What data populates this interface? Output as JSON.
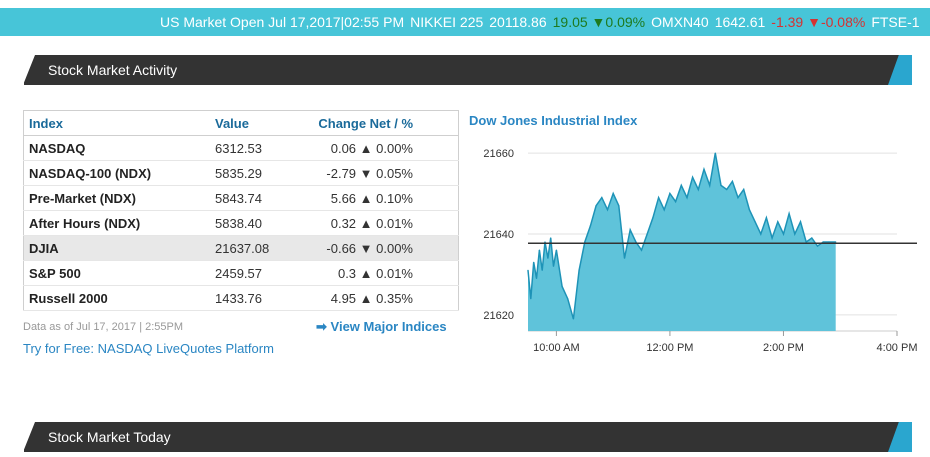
{
  "ticker": {
    "items": [
      {
        "text": "US Market Open  Jul 17,2017|02:55 PM",
        "cls": ""
      },
      {
        "text": "NIKKEI 225",
        "cls": ""
      },
      {
        "text": "20118.86",
        "cls": ""
      },
      {
        "text": "19.05 ▼0.09%",
        "cls": "up"
      },
      {
        "text": "OMXN40",
        "cls": ""
      },
      {
        "text": "1642.61",
        "cls": ""
      },
      {
        "text": "-1.39 ▼-0.08%",
        "cls": "down"
      },
      {
        "text": "FTSE-1",
        "cls": ""
      }
    ]
  },
  "section1": {
    "title": "Stock Market Activity"
  },
  "section2": {
    "title": "Stock Market Today"
  },
  "table": {
    "headers": {
      "index": "Index",
      "value": "Value",
      "change": "Change Net / %"
    },
    "rows": [
      {
        "name": "NASDAQ",
        "value": "6312.53",
        "change": "0.06 ▲ 0.00%",
        "dir": "pos"
      },
      {
        "name": "NASDAQ-100 (NDX)",
        "value": "5835.29",
        "change": "-2.79 ▼ 0.05%",
        "dir": "neg"
      },
      {
        "name": "Pre-Market (NDX)",
        "value": "5843.74",
        "change": "5.66 ▲ 0.10%",
        "dir": "pos"
      },
      {
        "name": "After Hours (NDX)",
        "value": "5838.40",
        "change": "0.32 ▲ 0.01%",
        "dir": "pos"
      },
      {
        "name": "DJIA",
        "value": "21637.08",
        "change": "-0.66 ▼ 0.00%",
        "dir": "neg",
        "highlight": true
      },
      {
        "name": "S&P 500",
        "value": "2459.57",
        "change": "0.3 ▲ 0.01%",
        "dir": "pos"
      },
      {
        "name": "Russell 2000",
        "value": "1433.76",
        "change": "4.95 ▲ 0.35%",
        "dir": "pos"
      }
    ]
  },
  "footer": {
    "as_of": "Data as of Jul 17, 2017 | 2:55PM",
    "try_free": "Try for Free: NASDAQ LiveQuotes Platform",
    "view_major": "View Major Indices"
  },
  "chart_data": {
    "type": "area",
    "title": "Dow Jones Industrial Index",
    "xlabel": "",
    "ylabel": "",
    "y_ticks": [
      "21660",
      "21640",
      "21620"
    ],
    "x_ticks": [
      "10:00 AM",
      "12:00 PM",
      "2:00 PM",
      "4:00 PM"
    ],
    "ylim": [
      21616,
      21662
    ],
    "xlim": [
      9.5,
      16
    ],
    "previous_close": 21637.7,
    "x": [
      9.5,
      9.55,
      9.6,
      9.65,
      9.7,
      9.75,
      9.8,
      9.85,
      9.9,
      9.95,
      10.0,
      10.1,
      10.2,
      10.3,
      10.4,
      10.5,
      10.6,
      10.7,
      10.8,
      10.9,
      11.0,
      11.1,
      11.2,
      11.3,
      11.4,
      11.5,
      11.6,
      11.7,
      11.8,
      11.9,
      12.0,
      12.1,
      12.2,
      12.3,
      12.4,
      12.5,
      12.6,
      12.7,
      12.8,
      12.9,
      13.0,
      13.1,
      13.2,
      13.3,
      13.4,
      13.5,
      13.6,
      13.7,
      13.8,
      13.9,
      14.0,
      14.1,
      14.2,
      14.3,
      14.4,
      14.5,
      14.6,
      14.7,
      14.8,
      14.92
    ],
    "y": [
      21631.0,
      21624.0,
      21633.0,
      21629.0,
      21636.0,
      21631.0,
      21638.0,
      21634.0,
      21639.0,
      21632.0,
      21636.0,
      21627.0,
      21624.0,
      21619.0,
      21631.0,
      21638.0,
      21642.0,
      21647.0,
      21649.0,
      21646.0,
      21650.0,
      21647.0,
      21634.0,
      21641.0,
      21638.0,
      21636.0,
      21640.0,
      21644.0,
      21649.0,
      21646.0,
      21650.0,
      21648.0,
      21652.0,
      21649.0,
      21654.0,
      21651.0,
      21656.0,
      21652.0,
      21660.0,
      21652.0,
      21651.0,
      21653.0,
      21649.0,
      21651.0,
      21646.0,
      21643.0,
      21640.0,
      21644.0,
      21639.0,
      21643.0,
      21640.0,
      21645.0,
      21640.0,
      21643.0,
      21638.0,
      21639.0,
      21637.0,
      21638.0,
      21638.0,
      21638.0
    ]
  }
}
